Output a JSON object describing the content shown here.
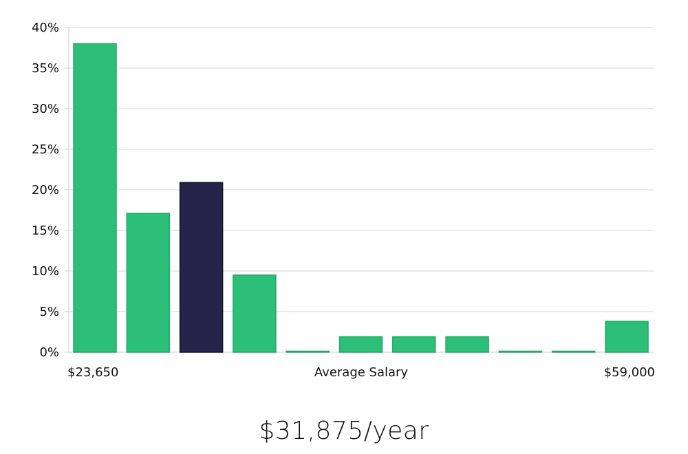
{
  "chart_data": {
    "type": "bar",
    "categories": [
      "1",
      "2",
      "3",
      "4",
      "5",
      "6",
      "7",
      "8",
      "9",
      "10",
      "11"
    ],
    "values": [
      38,
      17.1,
      20.9,
      9.5,
      0,
      1.9,
      1.9,
      1.9,
      0,
      0,
      3.8
    ],
    "highlight_index": 2,
    "ylim": [
      0,
      40
    ],
    "yticks": [
      0,
      5,
      10,
      15,
      20,
      25,
      30,
      35,
      40
    ],
    "ytick_suffix": "%",
    "x_labels": {
      "left": "$23,650",
      "center": "Average Salary",
      "right": "$59,000"
    },
    "grid": true,
    "colors": {
      "bar": "#2bbf78",
      "bar_stroke": "#22a866",
      "highlight": "#27234a",
      "highlight_stroke": "#141129",
      "grid": "#e3e3e3",
      "axis": "#cccccc"
    }
  },
  "summary": {
    "salary": "$31,875/year"
  }
}
